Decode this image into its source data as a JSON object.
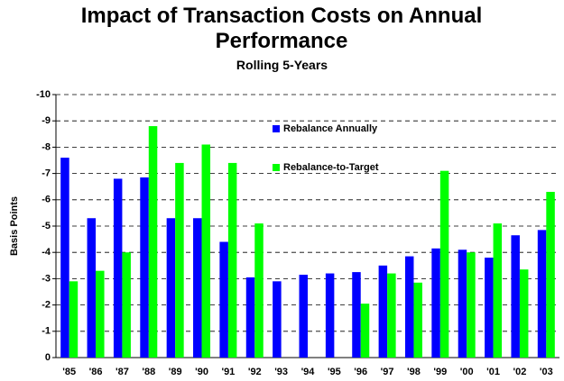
{
  "chart_data": {
    "type": "bar",
    "title": "Impact of Transaction Costs on Annual Performance",
    "subtitle": "Rolling 5-Years",
    "y_label": "Basis Points",
    "categories": [
      "'85",
      "'86",
      "'87",
      "'88",
      "'89",
      "'90",
      "'91",
      "'92",
      "'93",
      "'94",
      "'95",
      "'96",
      "'97",
      "'98",
      "'99",
      "'00",
      "'01",
      "'02",
      "'03"
    ],
    "series": [
      {
        "name": "Rebalance Annually",
        "color": "#0000ff",
        "values": [
          -7.6,
          -5.3,
          -6.8,
          -6.85,
          -5.3,
          -5.3,
          -4.4,
          -3.05,
          -2.9,
          -3.15,
          -3.2,
          -3.25,
          -3.5,
          -3.85,
          -4.15,
          -4.1,
          -3.8,
          -4.65,
          -4.85
        ]
      },
      {
        "name": "Rebalance-to-Target",
        "color": "#00ff00",
        "values": [
          -2.9,
          -3.3,
          -4.0,
          -8.8,
          -7.4,
          -8.1,
          -7.4,
          -5.1,
          null,
          null,
          null,
          -2.05,
          -3.2,
          -2.85,
          -7.1,
          -4.0,
          -5.1,
          -3.35,
          -6.3
        ]
      }
    ],
    "ylim": [
      0,
      -10
    ],
    "yticks": [
      0,
      -1,
      -2,
      -3,
      -4,
      -5,
      -6,
      -7,
      -8,
      -9,
      -10
    ],
    "grid": true
  }
}
